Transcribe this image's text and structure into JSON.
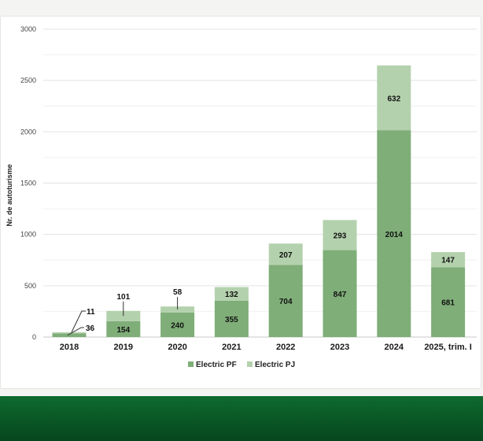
{
  "page": {
    "top_caption": ""
  },
  "colors": {
    "electric_pf": "#7fae78",
    "electric_pj": "#b4d1ad",
    "footer": "#0c5e29"
  },
  "chart_data": {
    "type": "bar",
    "stacked": true,
    "title": "",
    "xlabel": "",
    "ylabel": "Nr. de autoturisme",
    "ylim": [
      0,
      3000
    ],
    "yticks": [
      0,
      500,
      1000,
      1500,
      2000,
      2500,
      3000
    ],
    "grid": true,
    "legend_position": "bottom",
    "categories": [
      "2018",
      "2019",
      "2020",
      "2021",
      "2022",
      "2023",
      "2024",
      "2025, trim. I"
    ],
    "series": [
      {
        "name": "Electric PF",
        "values": [
          36,
          154,
          240,
          355,
          704,
          847,
          2014,
          681
        ]
      },
      {
        "name": "Electric PJ",
        "values": [
          11,
          101,
          58,
          132,
          207,
          293,
          632,
          147
        ]
      }
    ]
  }
}
